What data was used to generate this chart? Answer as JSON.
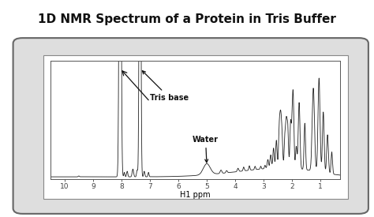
{
  "title": "1D NMR Spectrum of a Protein in Tris Buffer",
  "xlabel": "H1 ppm",
  "xlim": [
    10.5,
    0.3
  ],
  "ylim": [
    -0.02,
    1.05
  ],
  "xticks": [
    10,
    9,
    8,
    7,
    6,
    5,
    4,
    3,
    2,
    1
  ],
  "title_fontsize": 11,
  "xlabel_fontsize": 7,
  "xtick_fontsize": 6.5,
  "line_color": "#222222",
  "background_color": "#ffffff",
  "frame_bg": "#dedede",
  "plot_bg": "#ffffff",
  "annotation_tris_base": "Tris base",
  "annotation_water": "Water",
  "frame_edgecolor": "#666666",
  "inner_box_edgecolor": "#888888"
}
